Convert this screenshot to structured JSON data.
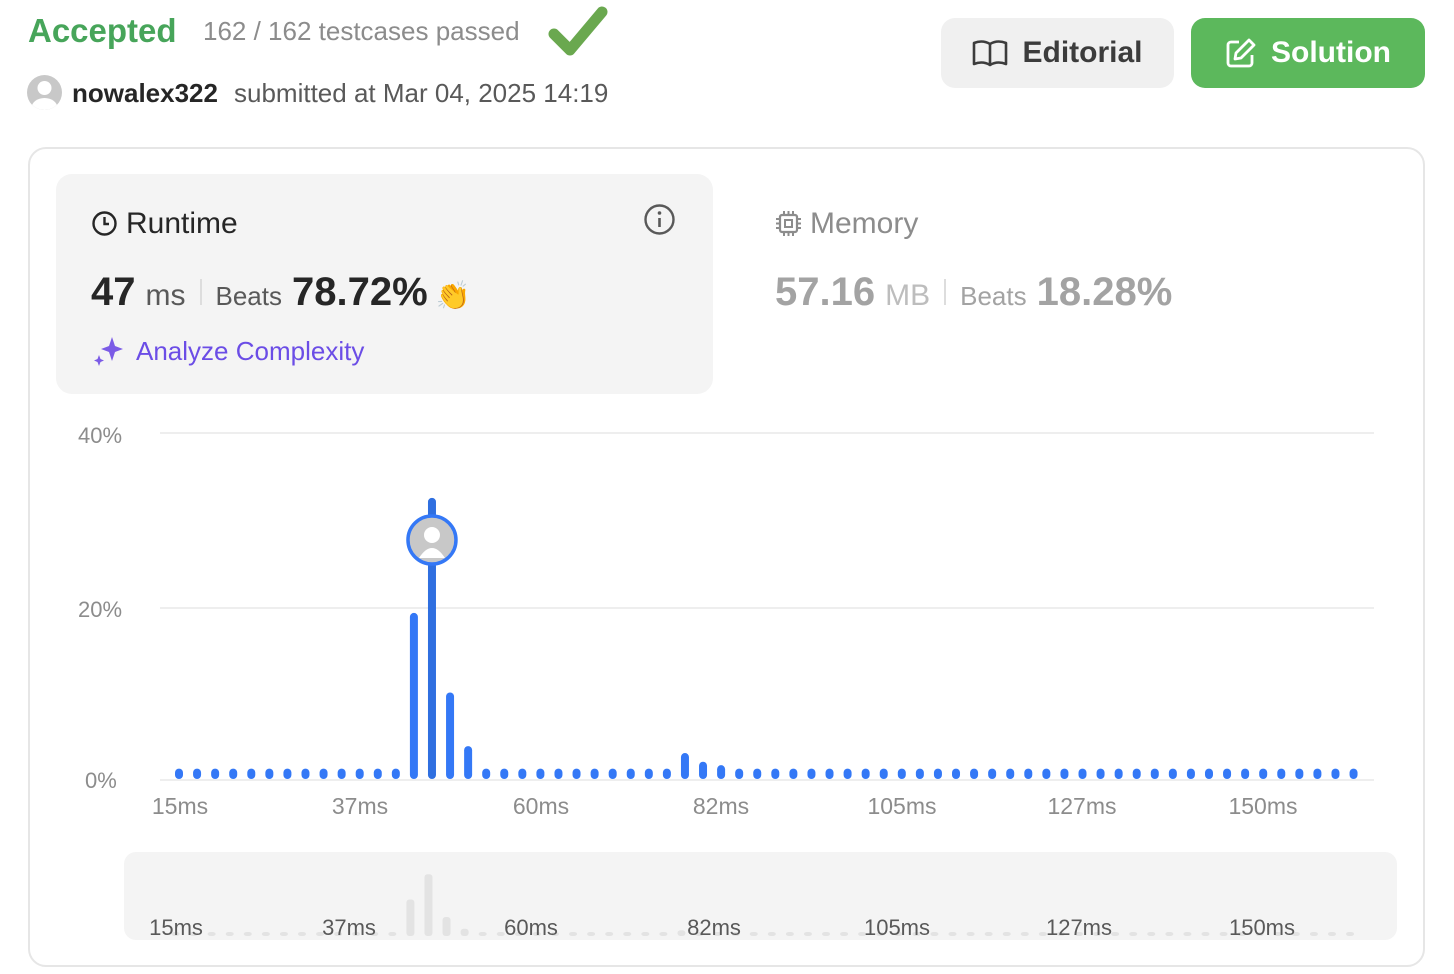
{
  "header": {
    "status": "Accepted",
    "testcases": "162 / 162 testcases passed",
    "username": "nowalex322",
    "submitted": "submitted at Mar 04, 2025 14:19",
    "editorial_label": "Editorial",
    "solution_label": "Solution"
  },
  "runtime": {
    "title": "Runtime",
    "value": "47",
    "unit": "ms",
    "beats_label": "Beats",
    "beats": "78.72%",
    "analyze": "Analyze Complexity"
  },
  "memory": {
    "title": "Memory",
    "value": "57.16",
    "unit": "MB",
    "beats_label": "Beats",
    "beats": "18.28%"
  },
  "colors": {
    "accent": "#3478f6",
    "accepted": "#47a55a",
    "solution_bg": "#5cb85c",
    "analyze": "#6b4de6"
  },
  "chart_data": {
    "type": "bar",
    "ylim": [
      0,
      40
    ],
    "yticks": [
      "40%",
      "20%",
      "0%"
    ],
    "xticks": [
      "15ms",
      "37ms",
      "60ms",
      "82ms",
      "105ms",
      "127ms",
      "150ms"
    ],
    "highlight_index": 14,
    "values": [
      1.2,
      1.2,
      1.2,
      1.2,
      1.2,
      1.2,
      1.2,
      1.2,
      1.2,
      1.2,
      1.2,
      1.2,
      1.2,
      19.2,
      32.5,
      10,
      3.8,
      1.2,
      1.2,
      1.2,
      1.2,
      1.2,
      1.2,
      1.2,
      1.2,
      1.2,
      1.2,
      1.2,
      3,
      2,
      1.6,
      1.2,
      1.2,
      1.2,
      1.2,
      1.2,
      1.2,
      1.2,
      1.2,
      1.2,
      1.2,
      1.2,
      1.2,
      1.2,
      1.2,
      1.2,
      1.2,
      1.2,
      1.2,
      1.2,
      1.2,
      1.2,
      1.2,
      1.2,
      1.2,
      1.2,
      1.2,
      1.2,
      1.2,
      1.2,
      1.2,
      1.2,
      1.2,
      1.2,
      1.2,
      1.2
    ]
  }
}
